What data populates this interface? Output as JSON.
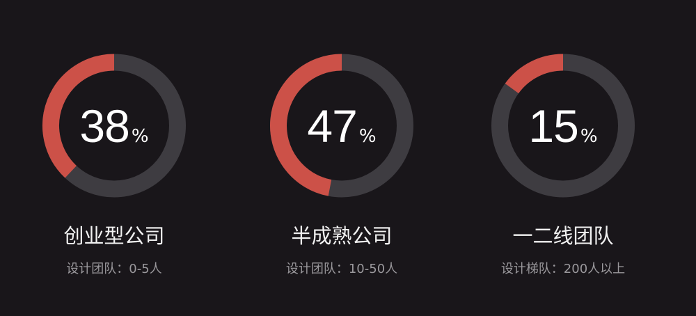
{
  "chart_data": {
    "type": "pie",
    "variant": "donut",
    "colors": {
      "filled": "#cc5148",
      "track": "#3e3c41",
      "background": "#19161a"
    },
    "items": [
      {
        "value": 38,
        "unit": "%",
        "title": "创业型公司",
        "subtitle": "设计团队：0-5人"
      },
      {
        "value": 47,
        "unit": "%",
        "title": "半成熟公司",
        "subtitle": "设计团队：10-50人"
      },
      {
        "value": 15,
        "unit": "%",
        "title": "一二线团队",
        "subtitle": "设计梯队：200人以上"
      }
    ]
  }
}
